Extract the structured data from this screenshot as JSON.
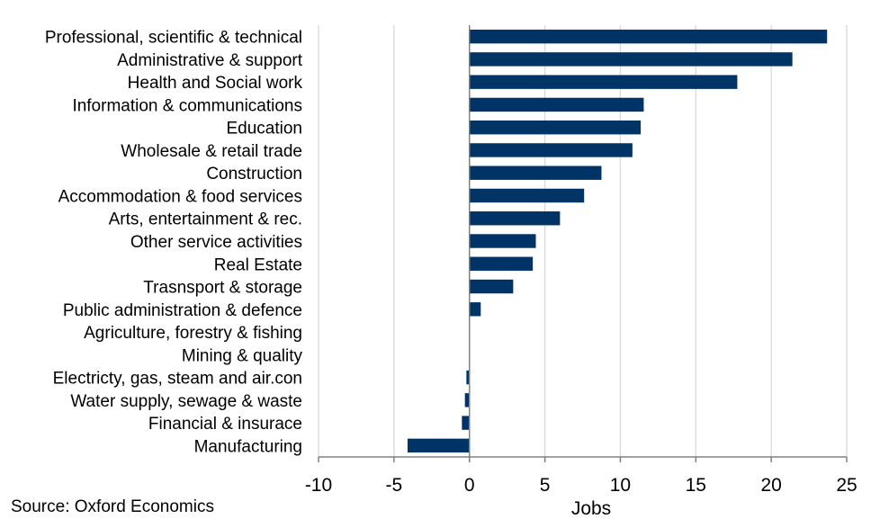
{
  "chart_data": {
    "type": "bar",
    "orientation": "horizontal",
    "title": "",
    "xlabel": "Jobs",
    "ylabel": "",
    "xlim": [
      -10,
      25
    ],
    "xticks": [
      -10,
      -5,
      0,
      5,
      10,
      15,
      20,
      25
    ],
    "xtick_labels": [
      "-10",
      "-5",
      "0",
      "5",
      "10",
      "15",
      "20",
      "25"
    ],
    "grid": "vertical",
    "legend": "none",
    "categories": [
      "Professional, scientific & technical",
      "Administrative & support",
      "Health and Social work",
      "Information & communications",
      "Education",
      "Wholesale & retail trade",
      "Construction",
      "Accommodation & food services",
      "Arts, entertainment & rec.",
      "Other service activities",
      "Real Estate",
      "Trasnsport & storage",
      "Public administration & defence",
      "Agriculture, forestry & fishing",
      "Mining & quality",
      "Electricty, gas, steam and air.con",
      "Water supply, sewage & waste",
      "Financial & insurace",
      "Manufacturing"
    ],
    "values": [
      23.7,
      21.4,
      17.75,
      11.55,
      11.35,
      10.8,
      8.75,
      7.6,
      6.0,
      4.4,
      4.2,
      2.9,
      0.75,
      0.0,
      0.0,
      -0.2,
      -0.3,
      -0.5,
      -4.1
    ],
    "colors": {
      "bar": "#003366",
      "grid": "#d9d9d9",
      "axis": "#808080"
    }
  },
  "source": "Source: Oxford Economics"
}
